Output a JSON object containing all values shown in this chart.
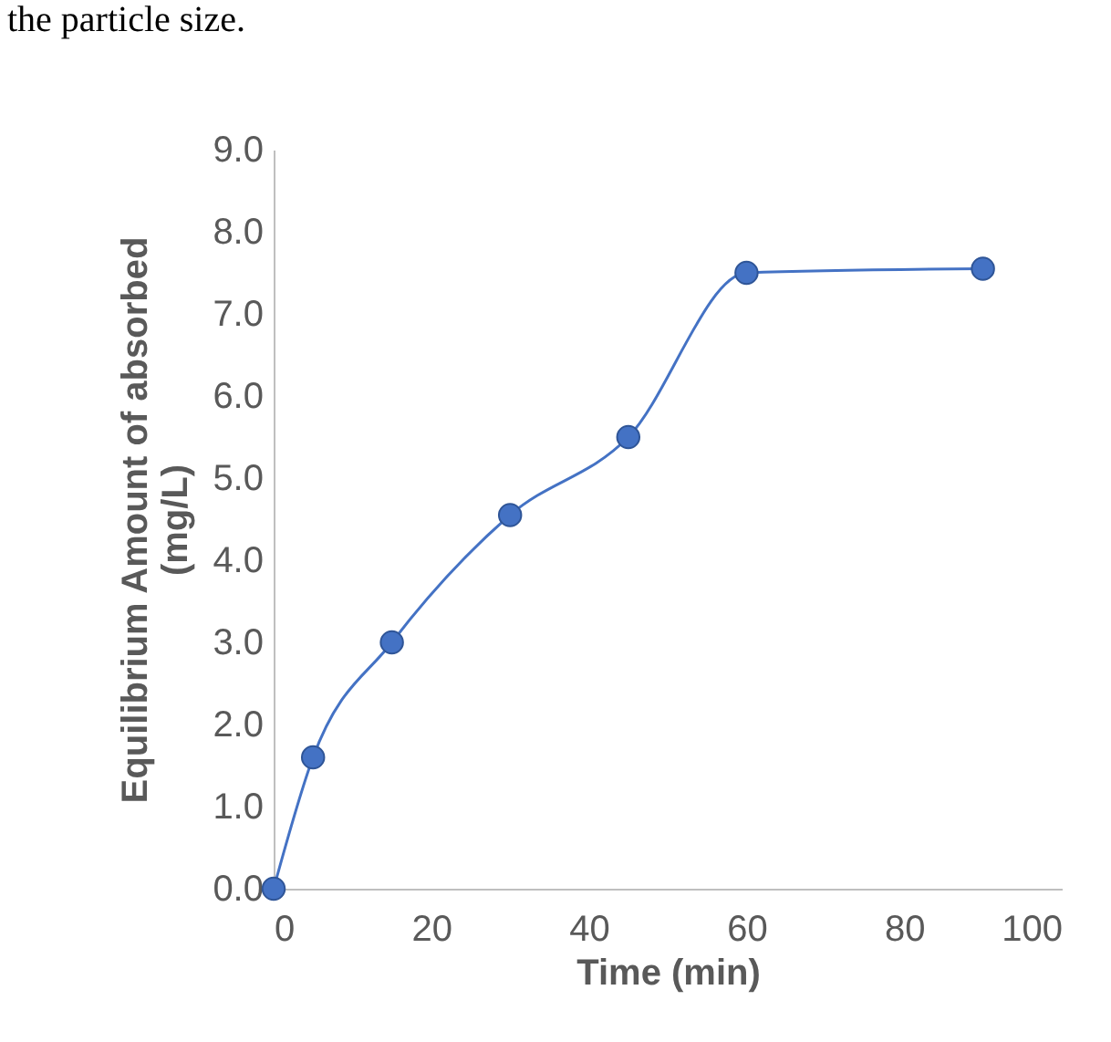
{
  "chart_data": {
    "type": "line",
    "annotations": [
      "the particle size."
    ],
    "xlabel": "Time (min)",
    "ylabel": "Equilibrium Amount of absorbed\n(mg/L)",
    "x": [
      0,
      5,
      15,
      30,
      45,
      60,
      90
    ],
    "series": [
      {
        "color": "#4472c4",
        "values": [
          0,
          1.6,
          3.0,
          4.55,
          5.5,
          7.5,
          7.55
        ]
      }
    ],
    "xlim": [
      0,
      100
    ],
    "xticks": [
      0,
      20,
      40,
      60,
      80,
      100
    ],
    "ylim": [
      0,
      9
    ],
    "yticks": [
      {
        "value": 0,
        "label": "0.0"
      },
      {
        "value": 1,
        "label": "1.0"
      },
      {
        "value": 2,
        "label": "2.0"
      },
      {
        "value": 3,
        "label": "3.0"
      },
      {
        "value": 4,
        "label": "4.0"
      },
      {
        "value": 5,
        "label": "5.0"
      },
      {
        "value": 6,
        "label": "6.0"
      },
      {
        "value": 7,
        "label": "7.0"
      },
      {
        "value": 8,
        "label": "8.0"
      },
      {
        "value": 9,
        "label": "9.0"
      }
    ],
    "grid": false,
    "marker": "circle",
    "line_style": "solid"
  }
}
